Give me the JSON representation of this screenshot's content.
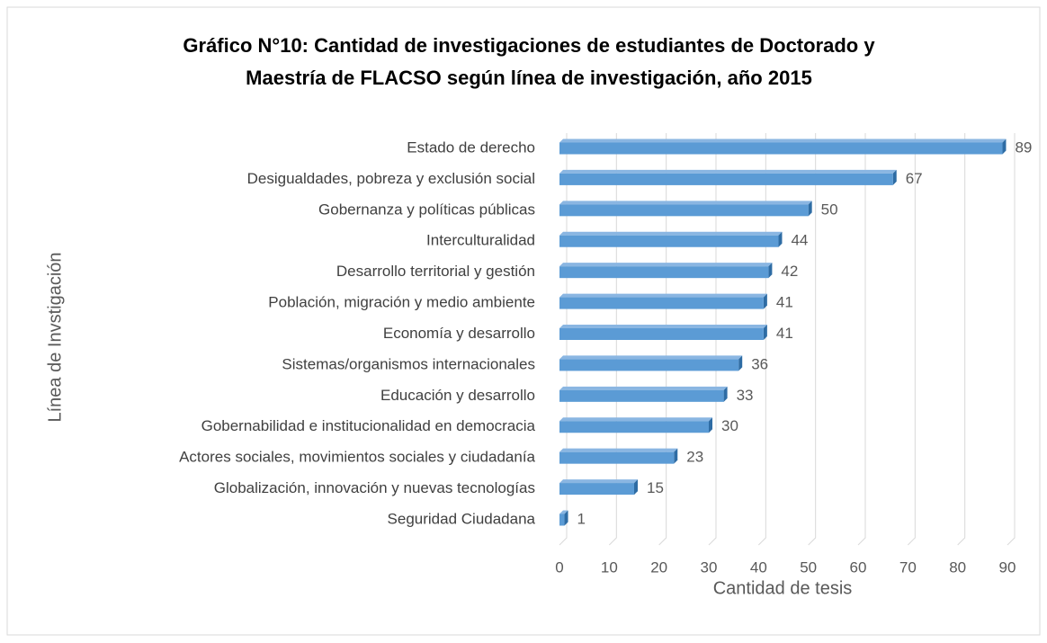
{
  "chart_data": {
    "type": "bar",
    "orientation": "horizontal",
    "title": [
      "Gráfico N°10: Cantidad de investigaciones de estudiantes de Doctorado y",
      "Maestría de FLACSO según línea de investigación, año 2015"
    ],
    "x_label": "Cantidad de tesis",
    "y_label": "Línea de Invstigación",
    "categories": [
      "Estado de derecho",
      "Desigualdades, pobreza y exclusión social",
      "Gobernanza y políticas públicas",
      "Interculturalidad",
      "Desarrollo territorial y gestión",
      "Población, migración y medio ambiente",
      "Economía y desarrollo",
      "Sistemas/organismos internacionales",
      "Educación y desarrollo",
      "Gobernabilidad e institucionalidad en democracia",
      "Actores sociales, movimientos  sociales y ciudadanía",
      "Globalización, innovación y nuevas tecnologías",
      "Seguridad Ciudadana"
    ],
    "values": [
      89,
      67,
      50,
      44,
      42,
      41,
      41,
      36,
      33,
      30,
      23,
      15,
      1
    ],
    "color": "#5b9bd5",
    "xlim": [
      0,
      90
    ],
    "xticks": [
      0,
      10,
      20,
      30,
      40,
      50,
      60,
      70,
      80,
      90
    ],
    "grid": true
  }
}
